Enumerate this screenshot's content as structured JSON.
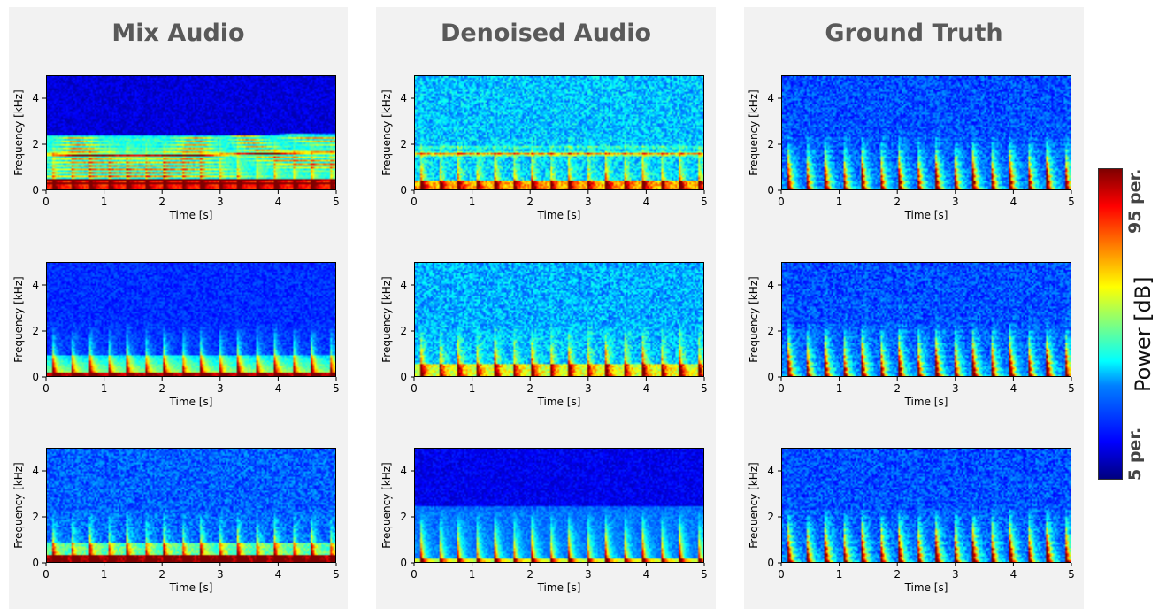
{
  "columns": [
    {
      "title": "Mix Audio"
    },
    {
      "title": "Denoised Audio"
    },
    {
      "title": "Ground Truth"
    }
  ],
  "axes": {
    "xlabel": "Time [s]",
    "ylabel": "Frequency [kHz]",
    "x_ticks": [
      "0",
      "1",
      "2",
      "3",
      "4",
      "5"
    ],
    "y_ticks": [
      "0",
      "2",
      "4"
    ]
  },
  "colorbar": {
    "label": "Power [dB]",
    "top_label": "95 per.",
    "bottom_label": "5 per.",
    "colormap": "jet"
  },
  "chart_data": {
    "type": "heatmap",
    "colormap": "jet",
    "layout": "3x3 grid of spectrograms",
    "xlabel": "Time [s]",
    "ylabel": "Frequency [kHz]",
    "xlim": [
      0,
      5
    ],
    "ylim": [
      0,
      5
    ],
    "colorbar_label": "Power [dB]",
    "colorbar_range": [
      "5 per.",
      "95 per."
    ],
    "columns": [
      "Mix Audio",
      "Denoised Audio",
      "Ground Truth"
    ],
    "rows": 3
  }
}
